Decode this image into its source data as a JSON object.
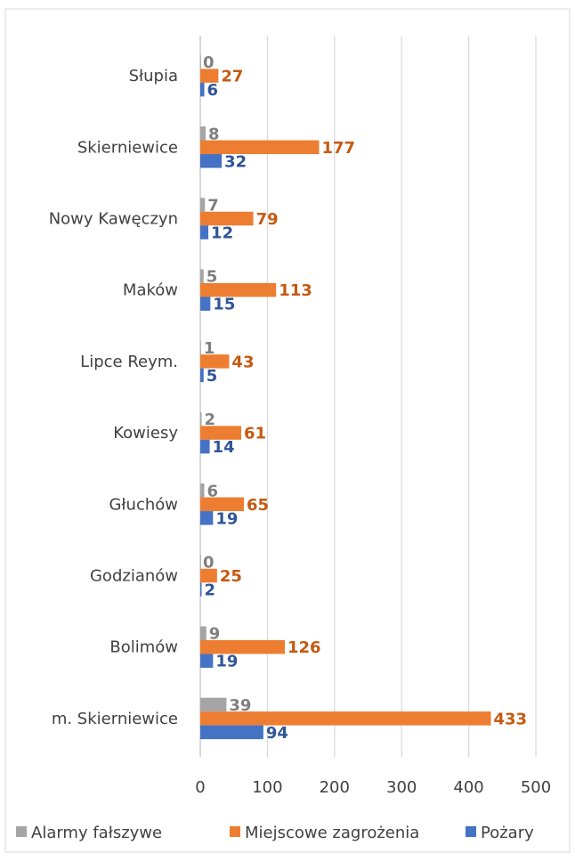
{
  "chart_data": {
    "type": "bar",
    "orientation": "horizontal",
    "title": "",
    "xlabel": "",
    "ylabel": "",
    "xlim": [
      0,
      500
    ],
    "xticks": [
      0,
      100,
      200,
      300,
      400,
      500
    ],
    "grid": true,
    "legend_position": "bottom",
    "categories": [
      "Słupia",
      "Skierniewice",
      "Nowy Kawęczyn",
      "Maków",
      "Lipce Reym.",
      "Kowiesy",
      "Głuchów",
      "Godzianów",
      "Bolimów",
      "m. Skierniewice"
    ],
    "series": [
      {
        "name": "Alarmy fałszywe",
        "color": "#A5A5A5",
        "label_color": "#7F7F7F",
        "values": [
          0,
          8,
          7,
          5,
          1,
          2,
          6,
          0,
          9,
          39
        ]
      },
      {
        "name": "Miejscowe zagrożenia",
        "color": "#ED7D31",
        "label_color": "#C55A11",
        "values": [
          27,
          177,
          79,
          113,
          43,
          61,
          65,
          25,
          126,
          433
        ]
      },
      {
        "name": "Pożary",
        "color": "#4472C4",
        "label_color": "#2F5597",
        "values": [
          6,
          32,
          12,
          15,
          5,
          14,
          19,
          2,
          19,
          94
        ]
      }
    ]
  }
}
